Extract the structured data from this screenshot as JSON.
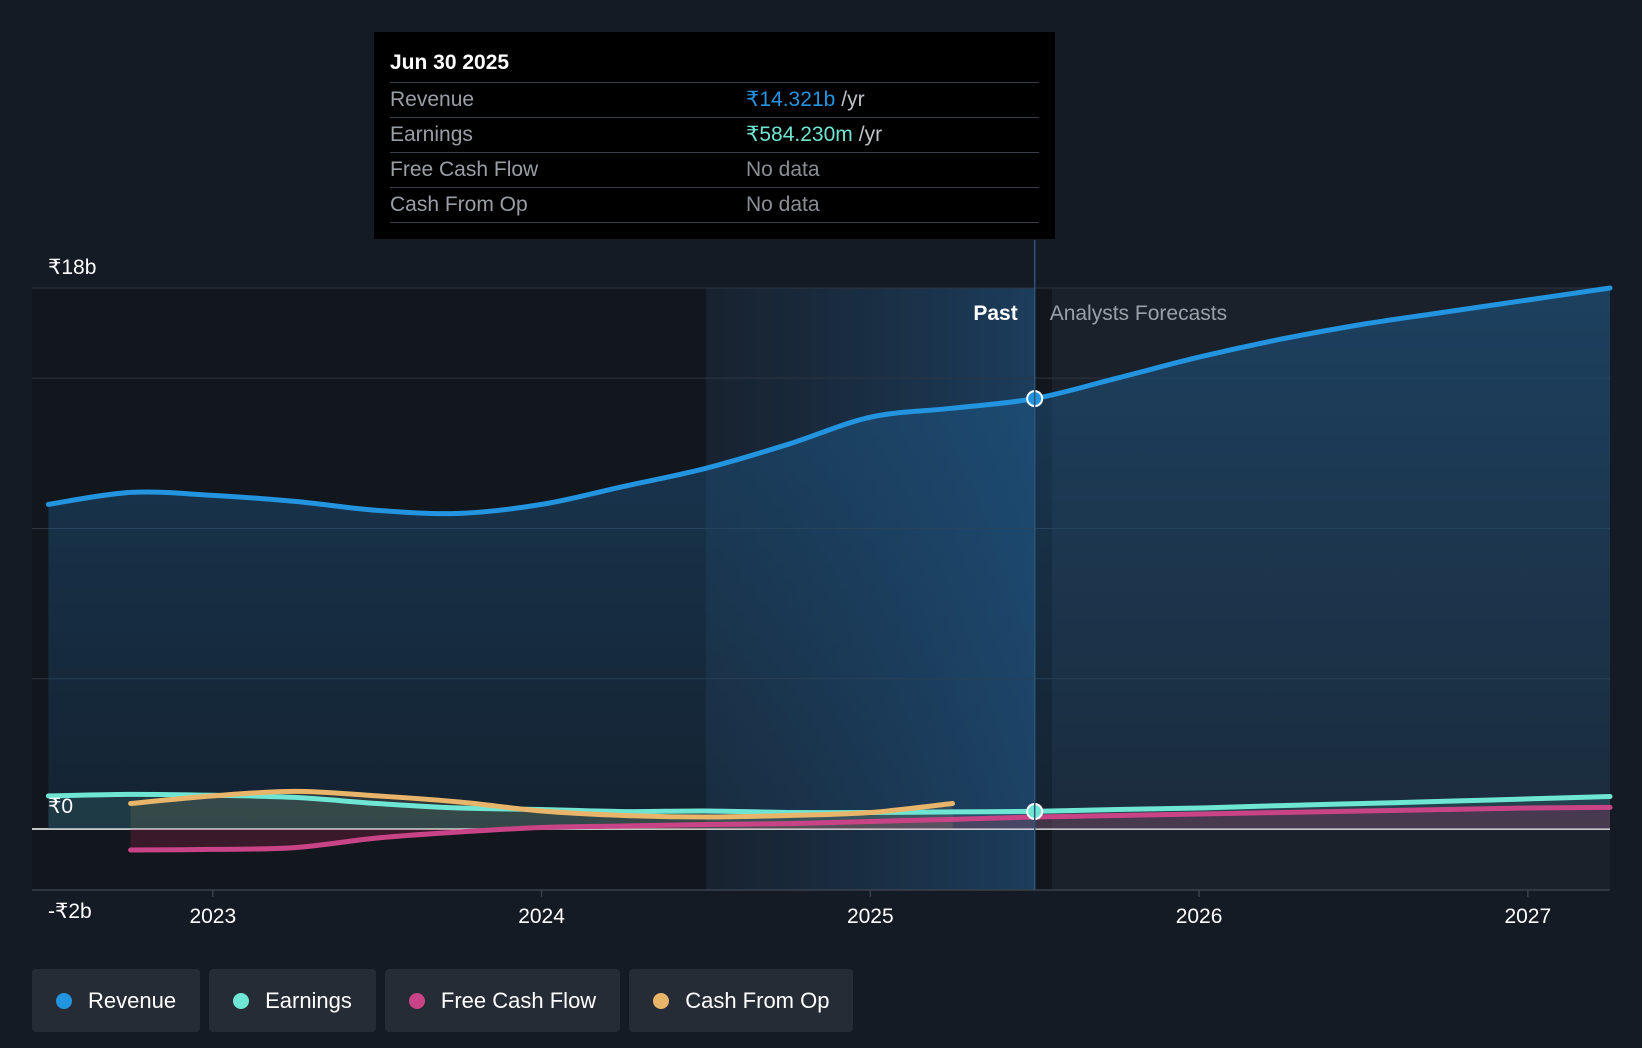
{
  "colors": {
    "revenue": "#2394df",
    "earnings": "#6ee6d3",
    "free_cash_flow": "#c94486",
    "cash_from_op": "#e8b56a"
  },
  "tooltip": {
    "date": "Jun 30 2025",
    "rows": [
      {
        "label": "Revenue",
        "value": "₹14.321b",
        "unit": "/yr"
      },
      {
        "label": "Earnings",
        "value": "₹584.230m",
        "unit": "/yr"
      },
      {
        "label": "Free Cash Flow",
        "value": "No data",
        "unit": ""
      },
      {
        "label": "Cash From Op",
        "value": "No data",
        "unit": ""
      }
    ]
  },
  "legend": [
    {
      "label": "Revenue",
      "color": "#2394df"
    },
    {
      "label": "Earnings",
      "color": "#6ee6d3"
    },
    {
      "label": "Free Cash Flow",
      "color": "#c94486"
    },
    {
      "label": "Cash From Op",
      "color": "#e8b56a"
    }
  ],
  "chart_data": {
    "type": "line",
    "title": "",
    "xlabel": "",
    "ylabel": "",
    "unit": "₹ billions",
    "ylim": [
      -2,
      18
    ],
    "xlim": [
      2022.45,
      2027.25
    ],
    "y_tick_labels": [
      {
        "value": 18,
        "label": "₹18b"
      },
      {
        "value": 0,
        "label": "₹0"
      },
      {
        "value": -2,
        "label": "-₹2b"
      }
    ],
    "y_gridlines": [
      18,
      15,
      10,
      5,
      0
    ],
    "x_ticks": [
      {
        "value": 2023.0,
        "label": "2023"
      },
      {
        "value": 2024.0,
        "label": "2024"
      },
      {
        "value": 2025.0,
        "label": "2025"
      },
      {
        "value": 2026.0,
        "label": "2026"
      },
      {
        "value": 2027.0,
        "label": "2027"
      }
    ],
    "past_label": "Past",
    "forecast_label": "Analysts Forecasts",
    "highlight_start": 2024.5,
    "divider_x": 2025.5,
    "series": [
      {
        "name": "Revenue",
        "key": "revenue",
        "fill": true,
        "points": [
          [
            2022.5,
            10.8
          ],
          [
            2022.75,
            11.2
          ],
          [
            2023.0,
            11.1
          ],
          [
            2023.25,
            10.9
          ],
          [
            2023.5,
            10.6
          ],
          [
            2023.75,
            10.5
          ],
          [
            2024.0,
            10.8
          ],
          [
            2024.25,
            11.4
          ],
          [
            2024.5,
            12.0
          ],
          [
            2024.75,
            12.8
          ],
          [
            2025.0,
            13.7
          ],
          [
            2025.25,
            14.0
          ],
          [
            2025.5,
            14.321
          ],
          [
            2025.75,
            15.0
          ],
          [
            2026.0,
            15.7
          ],
          [
            2026.25,
            16.3
          ],
          [
            2026.5,
            16.8
          ],
          [
            2026.75,
            17.2
          ],
          [
            2027.0,
            17.6
          ],
          [
            2027.25,
            18.0
          ]
        ],
        "markers": [
          [
            2025.5,
            14.321
          ]
        ]
      },
      {
        "name": "Earnings",
        "key": "earnings",
        "fill": true,
        "points": [
          [
            2022.5,
            1.1
          ],
          [
            2022.75,
            1.15
          ],
          [
            2023.0,
            1.12
          ],
          [
            2023.25,
            1.05
          ],
          [
            2023.5,
            0.85
          ],
          [
            2023.75,
            0.7
          ],
          [
            2024.0,
            0.65
          ],
          [
            2024.25,
            0.58
          ],
          [
            2024.5,
            0.6
          ],
          [
            2024.75,
            0.55
          ],
          [
            2025.0,
            0.55
          ],
          [
            2025.25,
            0.57
          ],
          [
            2025.5,
            0.584
          ],
          [
            2025.75,
            0.65
          ],
          [
            2026.0,
            0.7
          ],
          [
            2026.25,
            0.78
          ],
          [
            2026.5,
            0.85
          ],
          [
            2026.75,
            0.92
          ],
          [
            2027.0,
            1.0
          ],
          [
            2027.25,
            1.08
          ]
        ],
        "markers": [
          [
            2025.5,
            0.584
          ]
        ]
      },
      {
        "name": "Free Cash Flow",
        "key": "free_cash_flow",
        "fill": true,
        "points": [
          [
            2022.75,
            -0.7
          ],
          [
            2023.0,
            -0.68
          ],
          [
            2023.25,
            -0.62
          ],
          [
            2023.5,
            -0.3
          ],
          [
            2023.75,
            -0.1
          ],
          [
            2024.0,
            0.05
          ],
          [
            2024.25,
            0.1
          ],
          [
            2024.5,
            0.15
          ],
          [
            2024.75,
            0.18
          ],
          [
            2025.0,
            0.25
          ],
          [
            2025.25,
            0.32
          ],
          [
            2025.5,
            0.4
          ],
          [
            2025.75,
            0.45
          ],
          [
            2026.0,
            0.5
          ],
          [
            2026.25,
            0.55
          ],
          [
            2026.5,
            0.6
          ],
          [
            2026.75,
            0.65
          ],
          [
            2027.0,
            0.7
          ],
          [
            2027.25,
            0.72
          ]
        ],
        "markers": []
      },
      {
        "name": "Cash From Op",
        "key": "cash_from_op",
        "fill": true,
        "points": [
          [
            2022.75,
            0.85
          ],
          [
            2023.0,
            1.1
          ],
          [
            2023.25,
            1.25
          ],
          [
            2023.5,
            1.1
          ],
          [
            2023.75,
            0.9
          ],
          [
            2024.0,
            0.6
          ],
          [
            2024.25,
            0.45
          ],
          [
            2024.5,
            0.4
          ],
          [
            2024.75,
            0.45
          ],
          [
            2025.0,
            0.55
          ],
          [
            2025.25,
            0.85
          ]
        ],
        "markers": []
      }
    ]
  }
}
